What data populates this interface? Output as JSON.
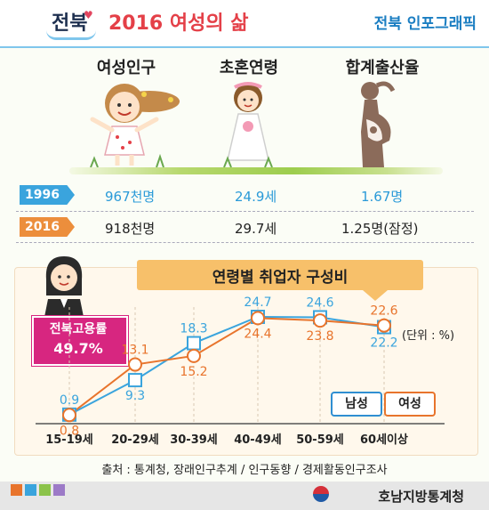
{
  "header": {
    "brand": "전북",
    "title": "2016 여성의 삶",
    "subtitle_right": "전북 인포그래픽"
  },
  "columns": [
    {
      "label": "여성인구",
      "v1996": "967천명",
      "v2016": "918천명"
    },
    {
      "label": "초혼연령",
      "v1996": "24.9세",
      "v2016": "29.7세"
    },
    {
      "label": "합계출산율",
      "v1996": "1.67명",
      "v2016": "1.25명(잠정)"
    }
  ],
  "years": {
    "y1996": "1996",
    "y2016": "2016"
  },
  "employment": {
    "label": "전북고용률",
    "value": "49.7%"
  },
  "chart_title": "연령별 취업자 구성비",
  "unit": "(단위 : %)",
  "legend": {
    "male": "남성",
    "female": "여성"
  },
  "source": "출처 : 통계청, 장래인구추계 / 인구동향 / 경제활동인구조사",
  "agency": "호남지방통계청",
  "colors": {
    "male": "#3aa4dd",
    "female": "#e8742c",
    "accent": "#e44048",
    "employment_box": "#d72680"
  },
  "chart_data": {
    "type": "line",
    "title": "연령별 취업자 구성비",
    "categories": [
      "15-19세",
      "20-29세",
      "30-39세",
      "40-49세",
      "50-59세",
      "60세이상"
    ],
    "series": [
      {
        "name": "남성",
        "values": [
          0.9,
          9.3,
          18.3,
          24.7,
          24.6,
          22.2
        ],
        "labels": [
          "0.9",
          "9.3",
          "18.3",
          "24.7",
          "24.6",
          "22.2"
        ]
      },
      {
        "name": "여성",
        "values": [
          0.8,
          13.1,
          15.2,
          24.4,
          23.8,
          22.6
        ],
        "labels": [
          "0.8",
          "13.1",
          "15.2",
          "24.4",
          "23.8",
          "22.6"
        ]
      }
    ],
    "ylim": [
      0,
      26
    ],
    "ylabel": "(단위 : %)"
  }
}
